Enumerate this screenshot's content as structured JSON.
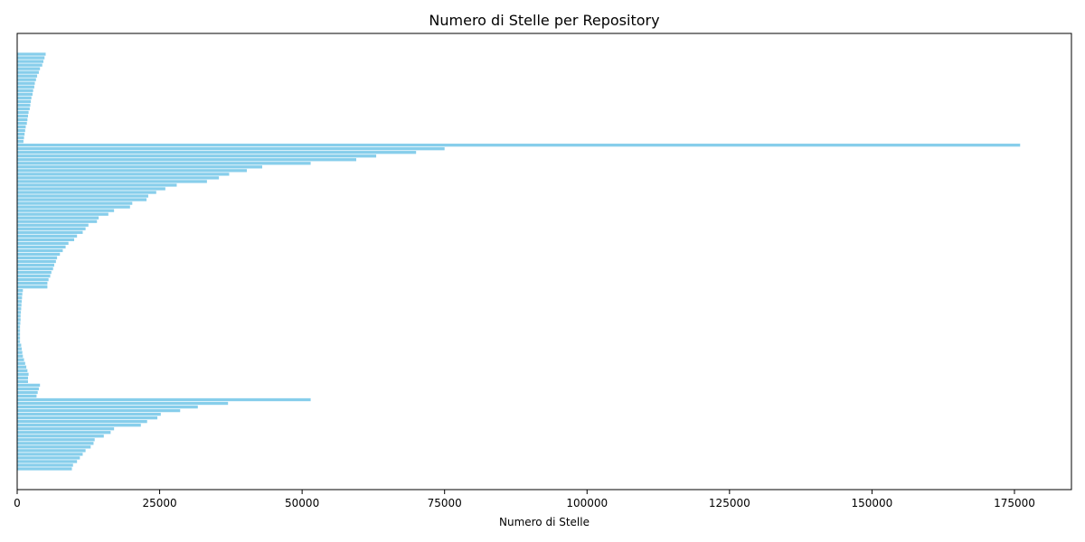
{
  "chart_data": {
    "type": "bar",
    "orientation": "horizontal",
    "title": "Numero di Stelle per Repository",
    "xlabel": "Numero di Stelle",
    "ylabel": "",
    "xlim": [
      0,
      185000
    ],
    "xticks": [
      0,
      25000,
      50000,
      75000,
      100000,
      125000,
      150000,
      175000
    ],
    "bar_color": "#87ceeb",
    "grid": false,
    "legend": "none",
    "values": [
      5000,
      4800,
      4600,
      4400,
      4000,
      3800,
      3500,
      3300,
      3100,
      3000,
      2800,
      2700,
      2500,
      2400,
      2300,
      2200,
      2000,
      1900,
      1800,
      1700,
      1500,
      1400,
      1300,
      1200,
      1100,
      176000,
      75000,
      70000,
      63000,
      59500,
      51500,
      43000,
      40300,
      37200,
      35400,
      33300,
      28000,
      26000,
      24400,
      23000,
      22700,
      20200,
      19800,
      17000,
      16000,
      14300,
      14000,
      12500,
      12000,
      11500,
      10500,
      10000,
      9000,
      8500,
      8000,
      7500,
      7000,
      6800,
      6500,
      6300,
      6000,
      5800,
      5500,
      5300,
      5300,
      1000,
      900,
      850,
      800,
      750,
      700,
      650,
      600,
      600,
      550,
      500,
      500,
      500,
      500,
      500,
      700,
      800,
      900,
      1000,
      1200,
      1400,
      1600,
      1800,
      2000,
      1900,
      1900,
      4000,
      3800,
      3600,
      3400,
      51500,
      37000,
      31700,
      28600,
      25200,
      24600,
      22800,
      21700,
      17000,
      16400,
      15200,
      13600,
      13400,
      12900,
      12000,
      11500,
      11000,
      10500,
      9800,
      9600
    ]
  }
}
